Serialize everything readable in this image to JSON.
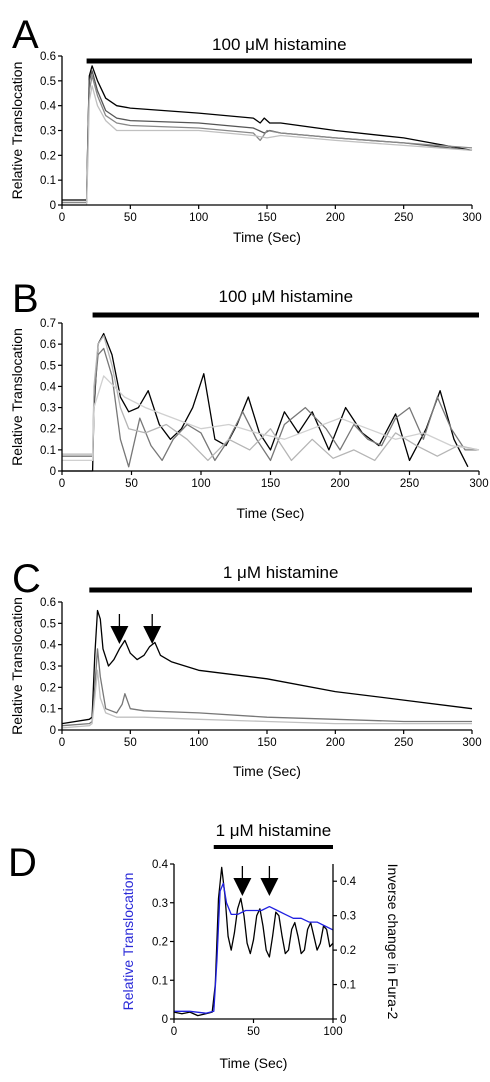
{
  "chart_data": [
    {
      "panel": "A",
      "type": "line",
      "stimulus": "100 μM histamine",
      "xlabel": "Time (Sec)",
      "ylabel": "Relative Translocation",
      "xlim": [
        0,
        300
      ],
      "ylim": [
        0,
        0.6
      ],
      "xticks": [
        0,
        50,
        100,
        150,
        200,
        250,
        300
      ],
      "yticks": [
        0,
        0.1,
        0.2,
        0.3,
        0.4,
        0.5,
        0.6
      ],
      "ytick_labels": [
        "0",
        "0.1",
        "0.2",
        "0.3",
        "0.4",
        "0.5",
        "0.6"
      ],
      "grid": false,
      "stim_bar": [
        18,
        300
      ],
      "series": [
        {
          "color": "#000000",
          "x": [
            0,
            18,
            19,
            20,
            22,
            26,
            32,
            40,
            50,
            100,
            140,
            145,
            148,
            152,
            160,
            200,
            250,
            300
          ],
          "y": [
            0.02,
            0.02,
            0.3,
            0.52,
            0.56,
            0.5,
            0.43,
            0.4,
            0.39,
            0.37,
            0.35,
            0.33,
            0.35,
            0.33,
            0.33,
            0.3,
            0.27,
            0.22
          ]
        },
        {
          "color": "#555555",
          "x": [
            0,
            18,
            19,
            20,
            22,
            26,
            32,
            40,
            50,
            100,
            140,
            148,
            152,
            160,
            200,
            250,
            300
          ],
          "y": [
            0.01,
            0.01,
            0.3,
            0.5,
            0.54,
            0.46,
            0.38,
            0.35,
            0.34,
            0.33,
            0.31,
            0.29,
            0.3,
            0.29,
            0.27,
            0.25,
            0.22
          ]
        },
        {
          "color": "#888888",
          "x": [
            0,
            18,
            19,
            20,
            22,
            26,
            32,
            40,
            50,
            100,
            140,
            145,
            150,
            160,
            200,
            250,
            300
          ],
          "y": [
            0.01,
            0.01,
            0.25,
            0.46,
            0.52,
            0.44,
            0.36,
            0.33,
            0.32,
            0.31,
            0.29,
            0.26,
            0.3,
            0.29,
            0.27,
            0.25,
            0.23
          ]
        },
        {
          "color": "#c0c0c0",
          "x": [
            0,
            18,
            19,
            20,
            22,
            26,
            32,
            40,
            50,
            100,
            140,
            150,
            160,
            200,
            250,
            300
          ],
          "y": [
            0.0,
            0.0,
            0.2,
            0.42,
            0.48,
            0.4,
            0.34,
            0.3,
            0.3,
            0.3,
            0.28,
            0.27,
            0.28,
            0.26,
            0.24,
            0.22
          ]
        }
      ]
    },
    {
      "panel": "B",
      "type": "line",
      "stimulus": "100 μM histamine",
      "xlabel": "Time (Sec)",
      "ylabel": "Relative Translocation",
      "xlim": [
        0,
        300
      ],
      "ylim": [
        0,
        0.7
      ],
      "xticks": [
        0,
        50,
        100,
        150,
        200,
        250,
        300
      ],
      "yticks": [
        0,
        0.1,
        0.2,
        0.3,
        0.4,
        0.5,
        0.6,
        0.7
      ],
      "ytick_labels": [
        "0",
        "0.1",
        "0.2",
        "0.3",
        "0.4",
        "0.5",
        "0.6",
        "0.7"
      ],
      "grid": false,
      "stim_bar": [
        22,
        300
      ],
      "series": [
        {
          "color": "#000000",
          "x": [
            0,
            22,
            23,
            26,
            30,
            36,
            42,
            48,
            55,
            62,
            70,
            78,
            86,
            94,
            102,
            110,
            118,
            126,
            134,
            142,
            150,
            160,
            170,
            180,
            192,
            204,
            216,
            228,
            240,
            250,
            262,
            272,
            282,
            292
          ],
          "y": [
            0.0,
            0.0,
            0.3,
            0.6,
            0.65,
            0.55,
            0.35,
            0.28,
            0.3,
            0.38,
            0.22,
            0.15,
            0.2,
            0.3,
            0.46,
            0.15,
            0.12,
            0.22,
            0.35,
            0.18,
            0.1,
            0.28,
            0.18,
            0.28,
            0.1,
            0.3,
            0.18,
            0.12,
            0.27,
            0.05,
            0.2,
            0.38,
            0.15,
            0.02
          ]
        },
        {
          "color": "#777777",
          "x": [
            0,
            22,
            23,
            26,
            30,
            36,
            42,
            48,
            56,
            64,
            72,
            80,
            90,
            100,
            110,
            120,
            130,
            140,
            150,
            160,
            175,
            190,
            200,
            210,
            220,
            230,
            240,
            250,
            260,
            270,
            280,
            290,
            300
          ],
          "y": [
            0.07,
            0.07,
            0.35,
            0.55,
            0.58,
            0.45,
            0.15,
            0.02,
            0.25,
            0.12,
            0.05,
            0.15,
            0.22,
            0.18,
            0.05,
            0.15,
            0.28,
            0.15,
            0.05,
            0.22,
            0.3,
            0.2,
            0.1,
            0.22,
            0.15,
            0.12,
            0.25,
            0.3,
            0.15,
            0.35,
            0.2,
            0.1,
            0.1
          ]
        },
        {
          "color": "#b5b5b5",
          "x": [
            0,
            22,
            23,
            26,
            30,
            36,
            42,
            48,
            60,
            75,
            90,
            105,
            120,
            135,
            150,
            165,
            180,
            195,
            210,
            225,
            240,
            255,
            270,
            285,
            300
          ],
          "y": [
            0.08,
            0.08,
            0.4,
            0.6,
            0.64,
            0.5,
            0.3,
            0.2,
            0.18,
            0.22,
            0.15,
            0.05,
            0.15,
            0.1,
            0.2,
            0.05,
            0.15,
            0.06,
            0.1,
            0.05,
            0.18,
            0.12,
            0.07,
            0.12,
            0.1
          ]
        },
        {
          "color": "#d0d0d0",
          "x": [
            0,
            22,
            23,
            30,
            45,
            60,
            80,
            100,
            120,
            140,
            160,
            180,
            200,
            220,
            240,
            260,
            280,
            300
          ],
          "y": [
            0.05,
            0.05,
            0.3,
            0.45,
            0.35,
            0.3,
            0.25,
            0.2,
            0.22,
            0.18,
            0.15,
            0.2,
            0.25,
            0.2,
            0.15,
            0.18,
            0.12,
            0.1
          ]
        }
      ]
    },
    {
      "panel": "C",
      "type": "line",
      "stimulus": "1 μM histamine",
      "xlabel": "Time (Sec)",
      "ylabel": "Relative Translocation",
      "xlim": [
        0,
        300
      ],
      "ylim": [
        0,
        0.6
      ],
      "xticks": [
        0,
        50,
        100,
        150,
        200,
        250,
        300
      ],
      "yticks": [
        0,
        0.1,
        0.2,
        0.3,
        0.4,
        0.5,
        0.6
      ],
      "ytick_labels": [
        "0",
        "0.1",
        "0.2",
        "0.3",
        "0.4",
        "0.5",
        "0.6"
      ],
      "grid": false,
      "stim_bar": [
        20,
        300
      ],
      "arrows_at_x": [
        42,
        66
      ],
      "series": [
        {
          "color": "#000000",
          "x": [
            0,
            20,
            22,
            24,
            26,
            28,
            30,
            34,
            38,
            42,
            46,
            50,
            55,
            60,
            64,
            68,
            72,
            80,
            100,
            150,
            200,
            250,
            300
          ],
          "y": [
            0.03,
            0.05,
            0.06,
            0.35,
            0.56,
            0.52,
            0.38,
            0.3,
            0.33,
            0.38,
            0.42,
            0.36,
            0.33,
            0.35,
            0.39,
            0.41,
            0.35,
            0.32,
            0.28,
            0.24,
            0.18,
            0.14,
            0.1
          ]
        },
        {
          "color": "#777777",
          "x": [
            0,
            20,
            22,
            24,
            26,
            28,
            32,
            40,
            44,
            46,
            50,
            60,
            100,
            150,
            200,
            250,
            300
          ],
          "y": [
            0.02,
            0.03,
            0.04,
            0.2,
            0.38,
            0.25,
            0.1,
            0.08,
            0.12,
            0.17,
            0.1,
            0.09,
            0.08,
            0.06,
            0.05,
            0.04,
            0.04
          ]
        },
        {
          "color": "#c0c0c0",
          "x": [
            0,
            20,
            22,
            24,
            26,
            28,
            32,
            40,
            60,
            100,
            150,
            200,
            250,
            300
          ],
          "y": [
            0.01,
            0.02,
            0.03,
            0.15,
            0.28,
            0.15,
            0.08,
            0.06,
            0.06,
            0.05,
            0.04,
            0.03,
            0.03,
            0.03
          ]
        }
      ]
    },
    {
      "panel": "D",
      "type": "line",
      "stimulus": "1 μM histamine",
      "xlabel": "Time (Sec)",
      "ylabel": "Relative Translocation",
      "ylabel_right": "Inverse change in Fura-2",
      "ylabel_color": "#2a2ad8",
      "xlim": [
        0,
        100
      ],
      "ylim": [
        0,
        0.4
      ],
      "ylim_right": [
        0,
        0.45
      ],
      "xticks": [
        0,
        50,
        100
      ],
      "yticks": [
        0,
        0.1,
        0.2,
        0.3,
        0.4
      ],
      "ytick_labels": [
        "0",
        "0.1",
        "0.2",
        "0.3",
        "0.4"
      ],
      "yticks_right": [
        0,
        0.1,
        0.2,
        0.3,
        0.4
      ],
      "ytick_labels_right": [
        "0",
        "0.1",
        "0.2",
        "0.3",
        "0.4"
      ],
      "grid": false,
      "stim_bar": [
        25,
        100
      ],
      "arrows_at_x": [
        43,
        60
      ],
      "series": [
        {
          "color": "#000000",
          "axis": "right",
          "x": [
            0,
            5,
            10,
            15,
            20,
            24,
            26,
            28,
            30,
            32,
            34,
            36,
            38,
            40,
            42,
            44,
            46,
            48,
            50,
            52,
            54,
            56,
            58,
            60,
            62,
            64,
            66,
            68,
            70,
            72,
            74,
            76,
            78,
            80,
            82,
            84,
            86,
            88,
            90,
            92,
            94,
            96,
            98,
            100
          ],
          "y": [
            0.02,
            0.015,
            0.02,
            0.01,
            0.015,
            0.02,
            0.1,
            0.35,
            0.44,
            0.36,
            0.24,
            0.2,
            0.25,
            0.32,
            0.35,
            0.3,
            0.22,
            0.19,
            0.23,
            0.3,
            0.32,
            0.27,
            0.2,
            0.18,
            0.24,
            0.31,
            0.3,
            0.24,
            0.19,
            0.2,
            0.26,
            0.28,
            0.24,
            0.19,
            0.2,
            0.26,
            0.28,
            0.24,
            0.2,
            0.22,
            0.27,
            0.26,
            0.21,
            0.22
          ]
        },
        {
          "color": "#2020e0",
          "axis": "left",
          "x": [
            0,
            10,
            20,
            25,
            27,
            29,
            31,
            33,
            36,
            40,
            45,
            50,
            55,
            60,
            65,
            70,
            75,
            80,
            85,
            90,
            95,
            100
          ],
          "y": [
            0.02,
            0.02,
            0.015,
            0.02,
            0.15,
            0.33,
            0.35,
            0.3,
            0.27,
            0.27,
            0.28,
            0.28,
            0.28,
            0.29,
            0.28,
            0.27,
            0.26,
            0.26,
            0.25,
            0.25,
            0.24,
            0.23
          ]
        }
      ]
    }
  ]
}
